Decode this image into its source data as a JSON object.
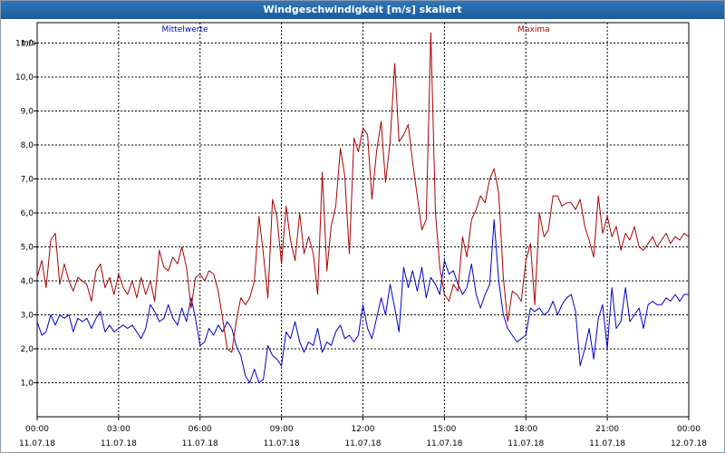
{
  "window": {
    "title": "Windgeschwindigkeit [m/s] skaliert"
  },
  "chart_data": {
    "type": "line",
    "ylabel": "m/s",
    "ylim": [
      0.0,
      11.6
    ],
    "yticks": [
      1.0,
      2.0,
      3.0,
      4.0,
      5.0,
      6.0,
      7.0,
      8.0,
      9.0,
      10.0,
      11.0
    ],
    "ytick_labels": [
      "1,0",
      "2,0",
      "3,0",
      "4,0",
      "5,0",
      "6,0",
      "7,0",
      "8,0",
      "9,0",
      "10,0",
      "11,0"
    ],
    "xlim": [
      0,
      24
    ],
    "xticks": [
      {
        "time": "00:00",
        "date": "11.07.18"
      },
      {
        "time": "03:00",
        "date": "11.07.18"
      },
      {
        "time": "06:00",
        "date": "11.07.18"
      },
      {
        "time": "09:00",
        "date": "11.07.18"
      },
      {
        "time": "12:00",
        "date": "11.07.18"
      },
      {
        "time": "15:00",
        "date": "11.07.18"
      },
      {
        "time": "18:00",
        "date": "11.07.18"
      },
      {
        "time": "21:00",
        "date": "11.07.18"
      },
      {
        "time": "00:00",
        "date": "12.07.18"
      }
    ],
    "grid": true,
    "series": [
      {
        "name": "Mittelwerte",
        "color": "#0000cc",
        "x": [
          0.0,
          0.17,
          0.33,
          0.5,
          0.67,
          0.83,
          1.0,
          1.17,
          1.33,
          1.5,
          1.67,
          1.83,
          2.0,
          2.17,
          2.33,
          2.5,
          2.67,
          2.83,
          3.0,
          3.17,
          3.33,
          3.5,
          3.67,
          3.83,
          4.0,
          4.17,
          4.33,
          4.5,
          4.67,
          4.83,
          5.0,
          5.17,
          5.33,
          5.5,
          5.67,
          5.83,
          6.0,
          6.17,
          6.33,
          6.5,
          6.67,
          6.83,
          7.0,
          7.17,
          7.33,
          7.5,
          7.67,
          7.83,
          8.0,
          8.17,
          8.33,
          8.5,
          8.67,
          8.83,
          9.0,
          9.17,
          9.33,
          9.5,
          9.67,
          9.83,
          10.0,
          10.17,
          10.33,
          10.5,
          10.67,
          10.83,
          11.0,
          11.17,
          11.33,
          11.5,
          11.67,
          11.83,
          12.0,
          12.17,
          12.33,
          12.5,
          12.67,
          12.83,
          13.0,
          13.17,
          13.33,
          13.5,
          13.67,
          13.83,
          14.0,
          14.17,
          14.33,
          14.5,
          14.67,
          14.83,
          15.0,
          15.17,
          15.33,
          15.5,
          15.67,
          15.83,
          16.0,
          16.17,
          16.33,
          16.5,
          16.67,
          16.83,
          17.0,
          17.17,
          17.33,
          17.5,
          17.67,
          17.83,
          18.0,
          18.17,
          18.33,
          18.5,
          18.67,
          18.83,
          19.0,
          19.17,
          19.33,
          19.5,
          19.67,
          19.83,
          20.0,
          20.17,
          20.33,
          20.5,
          20.67,
          20.83,
          21.0,
          21.17,
          21.33,
          21.5,
          21.67,
          21.83,
          22.0,
          22.17,
          22.33,
          22.5,
          22.67,
          22.83,
          23.0,
          23.17,
          23.33,
          23.5,
          23.67,
          23.83,
          24.0
        ],
        "values": [
          2.8,
          2.4,
          2.5,
          3.0,
          2.7,
          3.0,
          2.9,
          3.0,
          2.5,
          2.9,
          2.8,
          2.9,
          2.6,
          2.9,
          3.1,
          2.5,
          2.7,
          2.5,
          2.6,
          2.7,
          2.6,
          2.7,
          2.5,
          2.3,
          2.6,
          3.3,
          3.1,
          2.8,
          2.9,
          3.3,
          2.9,
          2.7,
          3.2,
          2.8,
          3.5,
          2.9,
          2.1,
          2.2,
          2.6,
          2.4,
          2.7,
          2.5,
          2.8,
          2.6,
          2.1,
          1.8,
          1.2,
          1.0,
          1.4,
          1.0,
          1.1,
          2.1,
          1.8,
          1.7,
          1.5,
          2.5,
          2.3,
          2.8,
          2.2,
          1.9,
          2.2,
          2.1,
          2.6,
          1.9,
          2.2,
          2.1,
          2.5,
          2.7,
          2.3,
          2.4,
          2.2,
          2.4,
          3.3,
          2.6,
          2.3,
          2.9,
          3.5,
          3.0,
          3.9,
          3.2,
          2.5,
          4.4,
          3.8,
          4.3,
          3.7,
          4.4,
          3.5,
          4.1,
          3.9,
          3.6,
          4.6,
          4.2,
          4.3,
          3.9,
          3.6,
          3.8,
          4.5,
          3.6,
          3.2,
          3.6,
          3.9,
          5.8,
          4.0,
          3.0,
          2.6,
          2.4,
          2.2,
          2.3,
          2.4,
          3.2,
          3.1,
          3.2,
          3.0,
          3.1,
          3.4,
          3.0,
          3.3,
          3.5,
          3.6,
          3.1,
          1.5,
          2.0,
          2.6,
          1.7,
          2.9,
          3.3,
          2.0,
          3.8,
          2.6,
          2.8,
          3.8,
          2.8,
          3.0,
          3.2,
          2.6,
          3.3,
          3.4,
          3.3,
          3.3,
          3.5,
          3.4,
          3.6,
          3.4,
          3.6,
          3.6
        ]
      },
      {
        "name": "Maxima",
        "color": "#aa0000",
        "x": [
          0.0,
          0.17,
          0.33,
          0.5,
          0.67,
          0.83,
          1.0,
          1.17,
          1.33,
          1.5,
          1.67,
          1.83,
          2.0,
          2.17,
          2.33,
          2.5,
          2.67,
          2.83,
          3.0,
          3.17,
          3.33,
          3.5,
          3.67,
          3.83,
          4.0,
          4.17,
          4.33,
          4.5,
          4.67,
          4.83,
          5.0,
          5.17,
          5.33,
          5.5,
          5.67,
          5.83,
          6.0,
          6.17,
          6.33,
          6.5,
          6.67,
          6.83,
          7.0,
          7.17,
          7.33,
          7.5,
          7.67,
          7.83,
          8.0,
          8.17,
          8.33,
          8.5,
          8.67,
          8.83,
          9.0,
          9.17,
          9.33,
          9.5,
          9.67,
          9.83,
          10.0,
          10.17,
          10.33,
          10.5,
          10.67,
          10.83,
          11.0,
          11.17,
          11.33,
          11.5,
          11.67,
          11.83,
          12.0,
          12.17,
          12.33,
          12.5,
          12.67,
          12.83,
          13.0,
          13.17,
          13.33,
          13.5,
          13.67,
          13.83,
          14.0,
          14.17,
          14.33,
          14.5,
          14.67,
          14.83,
          15.0,
          15.17,
          15.33,
          15.5,
          15.67,
          15.83,
          16.0,
          16.17,
          16.33,
          16.5,
          16.67,
          16.83,
          17.0,
          17.17,
          17.33,
          17.5,
          17.67,
          17.83,
          18.0,
          18.17,
          18.33,
          18.5,
          18.67,
          18.83,
          19.0,
          19.17,
          19.33,
          19.5,
          19.67,
          19.83,
          20.0,
          20.17,
          20.33,
          20.5,
          20.67,
          20.83,
          21.0,
          21.17,
          21.33,
          21.5,
          21.67,
          21.83,
          22.0,
          22.17,
          22.33,
          22.5,
          22.67,
          22.83,
          23.0,
          23.17,
          23.33,
          23.5,
          23.67,
          23.83,
          24.0
        ],
        "values": [
          4.1,
          4.6,
          3.8,
          5.2,
          5.4,
          3.9,
          4.5,
          4.0,
          3.7,
          4.1,
          4.0,
          3.9,
          3.4,
          4.3,
          4.5,
          3.8,
          4.1,
          3.6,
          4.2,
          3.8,
          3.6,
          4.0,
          3.5,
          4.1,
          3.6,
          4.0,
          3.4,
          4.9,
          4.4,
          4.3,
          4.7,
          4.5,
          5.0,
          4.4,
          3.2,
          4.1,
          4.2,
          4.0,
          4.3,
          4.2,
          3.7,
          2.9,
          2.0,
          1.9,
          2.8,
          3.5,
          3.3,
          3.5,
          4.0,
          5.9,
          4.8,
          3.5,
          6.4,
          5.9,
          4.5,
          6.2,
          5.2,
          4.6,
          6.0,
          4.8,
          5.3,
          4.8,
          3.6,
          7.2,
          4.3,
          5.6,
          6.2,
          7.9,
          7.1,
          4.8,
          8.2,
          7.8,
          8.5,
          8.3,
          6.4,
          7.8,
          8.7,
          6.9,
          8.1,
          10.4,
          8.1,
          8.3,
          8.6,
          7.5,
          6.5,
          5.5,
          5.8,
          11.3,
          6.0,
          4.4,
          3.6,
          3.4,
          3.9,
          3.7,
          5.3,
          4.7,
          5.8,
          6.1,
          6.5,
          6.3,
          7.0,
          7.3,
          6.6,
          4.1,
          2.8,
          3.7,
          3.6,
          3.4,
          4.6,
          5.1,
          3.3,
          6.0,
          5.3,
          5.5,
          6.5,
          6.5,
          6.2,
          6.3,
          6.3,
          6.1,
          6.4,
          5.6,
          5.2,
          4.7,
          6.5,
          5.4,
          5.9,
          5.3,
          5.6,
          4.9,
          5.4,
          5.2,
          5.6,
          5.0,
          4.9,
          5.1,
          5.3,
          5.0,
          5.2,
          5.4,
          5.1,
          5.3,
          5.2,
          5.4,
          5.3
        ]
      }
    ]
  }
}
